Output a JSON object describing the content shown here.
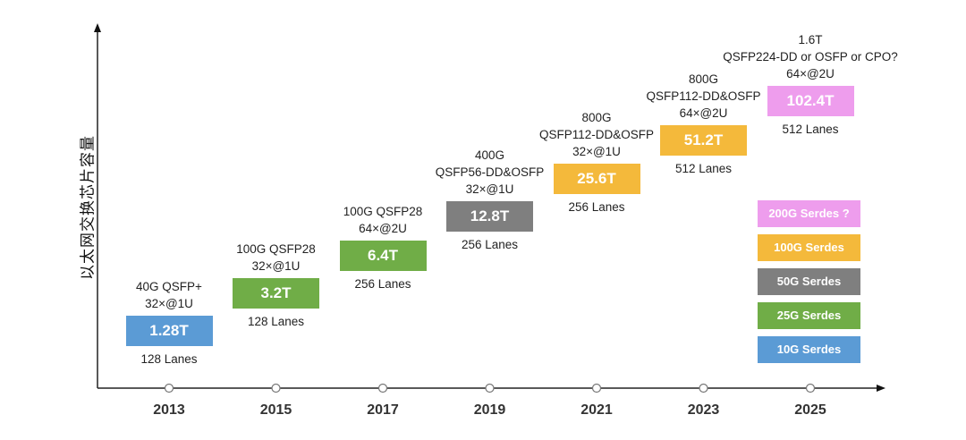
{
  "chart_data": {
    "type": "timeline",
    "title": "",
    "ylabel": "以太网交换芯片容量",
    "xlabel": "",
    "x": [
      "2013",
      "2015",
      "2017",
      "2019",
      "2021",
      "2023",
      "2025"
    ],
    "generations": [
      {
        "year": "2013",
        "spec": [
          "40G QSFP+",
          "32×@1U"
        ],
        "capacity": "1.28T",
        "capacity_tbps": 1.28,
        "lanes": "128 Lanes",
        "serdes": "10G Serdes",
        "color": "#5b9bd5"
      },
      {
        "year": "2015",
        "spec": [
          "100G QSFP28",
          "32×@1U"
        ],
        "capacity": "3.2T",
        "capacity_tbps": 3.2,
        "lanes": "128 Lanes",
        "serdes": "25G Serdes",
        "color": "#70ad47"
      },
      {
        "year": "2017",
        "spec": [
          "100G QSFP28",
          "64×@2U"
        ],
        "capacity": "6.4T",
        "capacity_tbps": 6.4,
        "lanes": "256 Lanes",
        "serdes": "25G Serdes",
        "color": "#70ad47"
      },
      {
        "year": "2019",
        "spec": [
          "400G",
          "QSFP56-DD&OSFP",
          "32×@1U"
        ],
        "capacity": "12.8T",
        "capacity_tbps": 12.8,
        "lanes": "256 Lanes",
        "serdes": "50G Serdes",
        "color": "#7f7f7f"
      },
      {
        "year": "2021",
        "spec": [
          "800G",
          "QSFP112-DD&OSFP",
          "32×@1U"
        ],
        "capacity": "25.6T",
        "capacity_tbps": 25.6,
        "lanes": "256 Lanes",
        "serdes": "100G Serdes",
        "color": "#f4b93b"
      },
      {
        "year": "2023",
        "spec": [
          "800G",
          "QSFP112-DD&OSFP",
          "64×@2U"
        ],
        "capacity": "51.2T",
        "capacity_tbps": 51.2,
        "lanes": "512 Lanes",
        "serdes": "100G Serdes",
        "color": "#f4b93b"
      },
      {
        "year": "2025",
        "spec": [
          "1.6T",
          "QSFP224-DD or OSFP or CPO?",
          "64×@2U"
        ],
        "capacity": "102.4T",
        "capacity_tbps": 102.4,
        "lanes": "512 Lanes",
        "serdes": "200G Serdes ?",
        "color": "#ee9ded"
      }
    ],
    "legend": [
      {
        "label": "200G Serdes ?",
        "color": "#ee9ded"
      },
      {
        "label": "100G Serdes",
        "color": "#f4b93b"
      },
      {
        "label": "50G Serdes",
        "color": "#7f7f7f"
      },
      {
        "label": "25G Serdes",
        "color": "#70ad47"
      },
      {
        "label": "10G Serdes",
        "color": "#5b9bd5"
      }
    ],
    "legend_position": "right"
  }
}
